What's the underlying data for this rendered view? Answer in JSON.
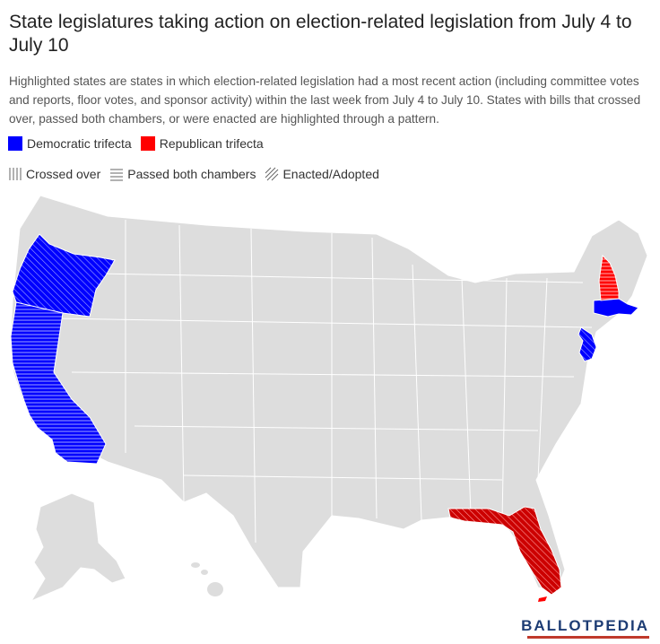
{
  "title": "State legislatures taking action on election-related legislation from July 4 to July 10",
  "subtitle": "Highlighted states are states in which election-related legislation had a most recent action (including committee votes and reports, floor votes, and sponsor activity) within the last week from July 4 to July 10. States with bills that crossed over, passed both chambers, or were enacted are highlighted through a pattern.",
  "legend": {
    "colors": [
      {
        "label": "Democratic trifecta",
        "color": "#0000ff"
      },
      {
        "label": "Republican trifecta",
        "color": "#ff0000"
      }
    ],
    "patterns": [
      {
        "label": "Crossed over",
        "pattern": "vertical-lines"
      },
      {
        "label": "Passed both chambers",
        "pattern": "horizontal-lines"
      },
      {
        "label": "Enacted/Adopted",
        "pattern": "diagonal-lines"
      }
    ]
  },
  "map": {
    "base_color": "#dddddd",
    "highlighted_states": [
      {
        "state": "Oregon",
        "party": "Democratic trifecta",
        "color": "#0000ff",
        "pattern": "diagonal-lines"
      },
      {
        "state": "California",
        "party": "Democratic trifecta",
        "color": "#0000ff",
        "pattern": "horizontal-lines"
      },
      {
        "state": "New Jersey",
        "party": "Democratic trifecta",
        "color": "#0000ff",
        "pattern": "diagonal-lines"
      },
      {
        "state": "Massachusetts",
        "party": "Democratic trifecta",
        "color": "#0000ff",
        "pattern": "none"
      },
      {
        "state": "New Hampshire",
        "party": "Republican trifecta",
        "color": "#ff0000",
        "pattern": "horizontal-lines"
      },
      {
        "state": "Florida",
        "party": "Republican trifecta",
        "color": "#ff0000",
        "pattern": "diagonal-lines"
      }
    ]
  },
  "logo": {
    "text": "BALLOTPEDIA"
  }
}
